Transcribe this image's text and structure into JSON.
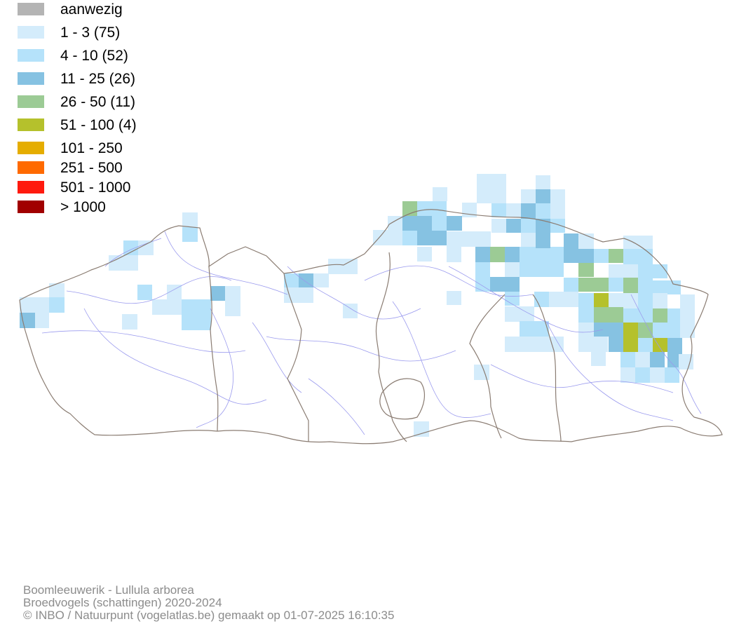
{
  "legend": [
    {
      "label": "aanwezig",
      "color": "#b4b4b4"
    },
    {
      "label": "1 - 3 (75)",
      "color": "#d4ecfb"
    },
    {
      "label": "4 - 10 (52)",
      "color": "#b5e2fa"
    },
    {
      "label": "11 - 25 (26)",
      "color": "#86c2e2"
    },
    {
      "label": "26 - 50 (11)",
      "color": "#9ccb95"
    },
    {
      "label": "51 - 100 (4)",
      "color": "#b5c12c"
    },
    {
      "label": "101 - 250",
      "color": "#e5ad00"
    },
    {
      "label": "251 - 500",
      "color": "#ff6a00"
    },
    {
      "label": "501 - 1000",
      "color": "#ff1a0e"
    },
    {
      "label": "> 1000",
      "color": "#a10000"
    }
  ],
  "footer": {
    "species": "Boomleeuwerik - Lullula arborea",
    "dataset": "Broedvogels (schattingen) 2020-2024",
    "credit": "© INBO / Natuurpunt (vogelatlas.be) gemaakt op 01-07-2025 16:10:35"
  },
  "map_colors": {
    "border": "#8a7c72",
    "rivers": "#9a9aee"
  }
}
